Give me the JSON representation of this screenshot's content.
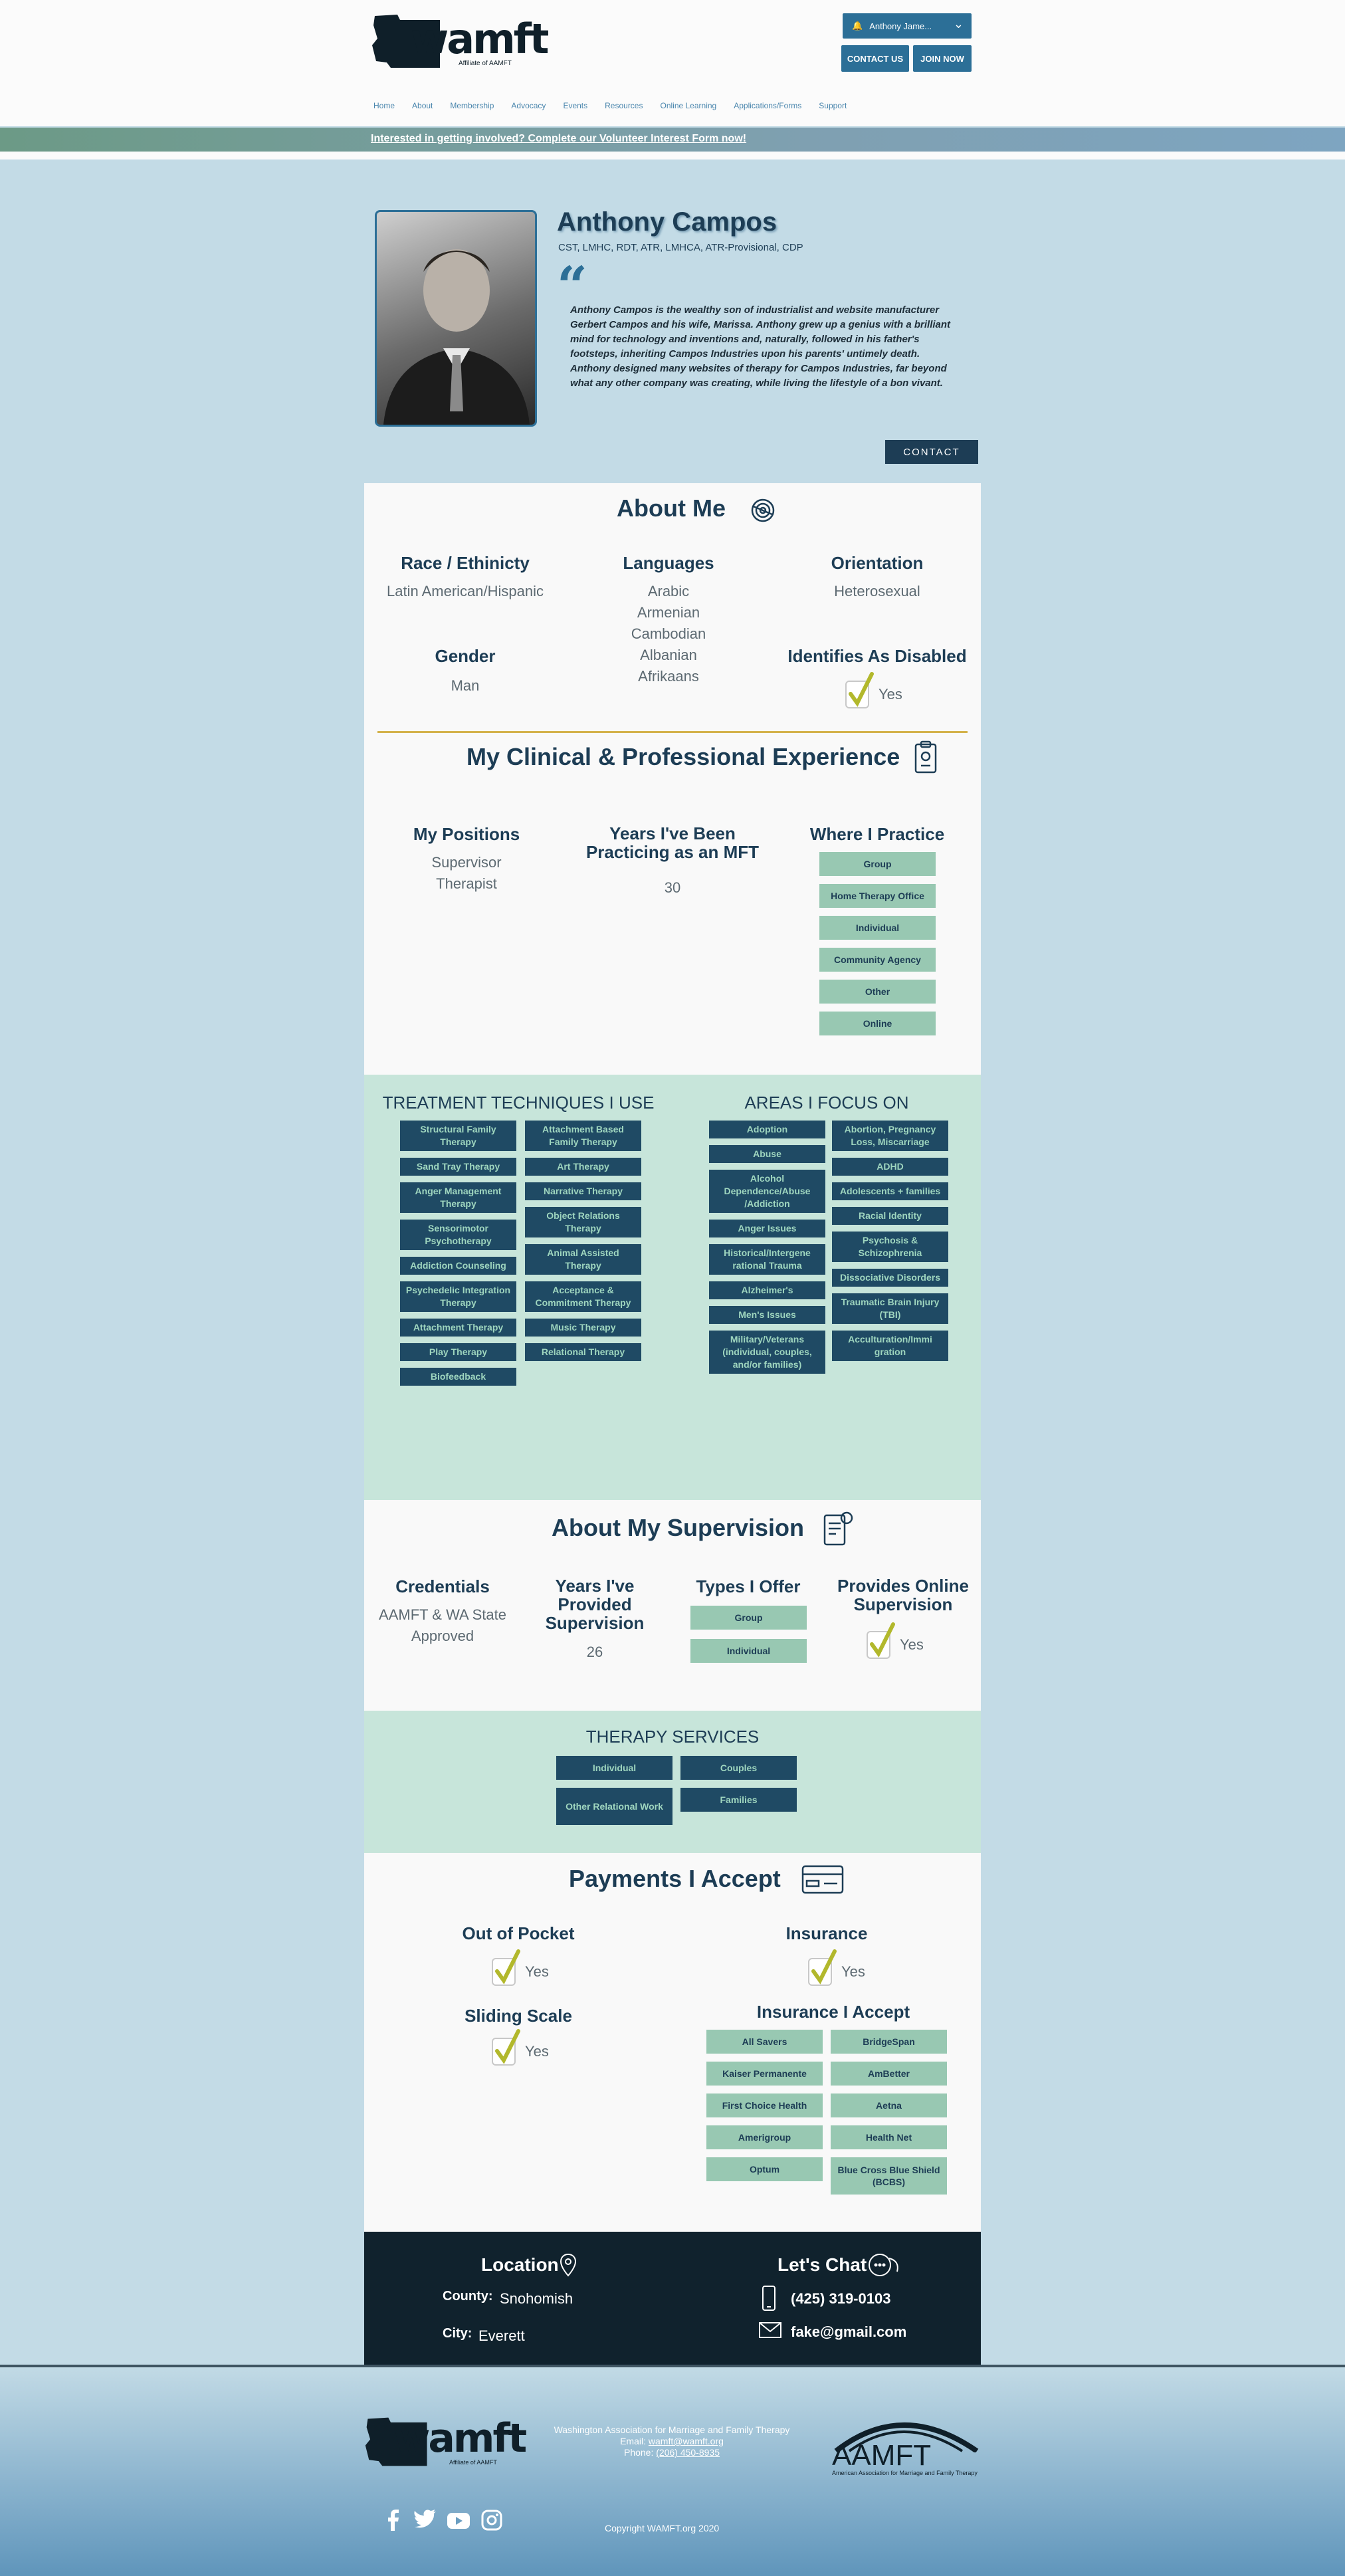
{
  "header": {
    "logo_text": "wamft",
    "logo_sub": "Affiliate of AAMFT",
    "user_menu": "Anthony Jame...",
    "contact_us": "CONTACT US",
    "join_now": "JOIN NOW",
    "nav": [
      "Home",
      "About",
      "Membership",
      "Advocacy",
      "Events",
      "Resources",
      "Online Learning",
      "Applications/Forms",
      "Support"
    ]
  },
  "banner": "Interested in getting involved? Complete our Volunteer Interest Form now!",
  "profile": {
    "name": "Anthony Campos",
    "credentials": "CST, LMHC, RDT, ATR, LMHCA, ATR-Provisional, CDP",
    "bio": "Anthony Campos is the wealthy son of industrialist and website manufacturer Gerbert Campos and his wife, Marissa. Anthony grew up a genius with a brilliant mind for technology and inventions and, naturally, followed in his father's footsteps, inheriting Campos Industries upon his parents' untimely death. Anthony designed many websites of therapy for Campos Industries, far beyond what any other company was creating, while living the lifestyle of a bon vivant.",
    "contact_button": "CONTACT"
  },
  "about": {
    "title": "About Me",
    "race_label": "Race / Ethinicty",
    "race_value": "Latin American/Hispanic",
    "languages_label": "Languages",
    "languages": [
      "Arabic",
      "Armenian",
      "Cambodian",
      "Albanian",
      "Afrikaans"
    ],
    "orientation_label": "Orientation",
    "orientation_value": "Heterosexual",
    "gender_label": "Gender",
    "gender_value": "Man",
    "disabled_label": "Identifies As Disabled",
    "disabled_value": "Yes"
  },
  "experience": {
    "title": "My Clinical & Professional Experience",
    "positions_label": "My Positions",
    "positions": [
      "Supervisor",
      "Therapist"
    ],
    "years_label": "Years I've Been Practicing as an MFT",
    "years_value": "30",
    "where_label": "Where I Practice",
    "where": [
      "Group",
      "Home Therapy Office",
      "Individual",
      "Community Agency",
      "Other",
      "Online"
    ]
  },
  "techniques": {
    "title": "TREATMENT TECHNIQUES I USE",
    "col1": [
      "Structural Family Therapy",
      "Sand Tray Therapy",
      "Anger Management Therapy",
      "Sensorimotor Psychotherapy",
      "Addiction Counseling",
      "Psychedelic Integration Therapy",
      "Attachment Therapy",
      "Play Therapy",
      "Biofeedback"
    ],
    "col2": [
      "Attachment Based Family Therapy",
      "Art Therapy",
      "Narrative Therapy",
      "Object Relations Therapy",
      "Animal Assisted Therapy",
      "Acceptance & Commitment Therapy",
      "Music Therapy",
      "Relational Therapy"
    ]
  },
  "focus": {
    "title": "AREAS I FOCUS ON",
    "col1": [
      "Adoption",
      "Abuse",
      "Alcohol Dependence/Abuse /Addiction",
      "Anger Issues",
      "Historical/Intergene rational Trauma",
      "Alzheimer's",
      "Men's Issues",
      "Military/Veterans (individual, couples, and/or families)"
    ],
    "col2": [
      "Abortion, Pregnancy Loss, Miscarriage",
      "ADHD",
      "Adolescents + families",
      "Racial Identity",
      "Psychosis & Schizophrenia",
      "Dissociative Disorders",
      "Traumatic Brain Injury (TBI)",
      "Acculturation/Immi gration"
    ]
  },
  "supervision": {
    "title": "About My Supervision",
    "credentials_label": "Credentials",
    "credentials_value": "AAMFT & WA State Approved",
    "years_label": "Years I've Provided Supervision",
    "years_value": "26",
    "types_label": "Types I Offer",
    "types": [
      "Group",
      "Individual"
    ],
    "online_label": "Provides Online Supervision",
    "online_value": "Yes"
  },
  "services": {
    "title": "THERAPY SERVICES",
    "items": [
      "Individual",
      "Couples",
      "Other Relational Work",
      "Families"
    ]
  },
  "payments": {
    "title": "Payments I Accept",
    "pocket_label": "Out of Pocket",
    "pocket_value": "Yes",
    "insurance_label": "Insurance",
    "insurance_value": "Yes",
    "sliding_label": "Sliding Scale",
    "sliding_value": "Yes",
    "accept_label": "Insurance I Accept",
    "col1": [
      "All Savers",
      "Kaiser Permanente",
      "First Choice Health",
      "Amerigroup",
      "Optum"
    ],
    "col2": [
      "BridgeSpan",
      "AmBetter",
      "Aetna",
      "Health Net",
      "Blue Cross Blue Shield (BCBS)"
    ]
  },
  "location": {
    "title": "Location",
    "county_label": "County:",
    "county_value": "Snohomish",
    "city_label": "City:",
    "city_value": "Everett"
  },
  "chat": {
    "title": "Let's Chat",
    "phone": "(425) 319-0103",
    "email": "fake@gmail.com"
  },
  "footer": {
    "org": "Washington Association for Marriage and Family Therapy",
    "email_label": "Email:",
    "email": "wamft@wamft.org",
    "phone_label": "Phone:",
    "phone": "(206) 450-8935",
    "aamft": "AAMFT",
    "aamft_sub": "American Association for Marriage and Family Therapy",
    "copyright": "Copyright WAMFT.org  2020"
  },
  "colors": {
    "navy": "#1d3d55",
    "pill": "#98c8b2",
    "tag": "#1f4a64",
    "teal_bg": "#c7e5da",
    "page_bg": "#c3dbe6"
  }
}
